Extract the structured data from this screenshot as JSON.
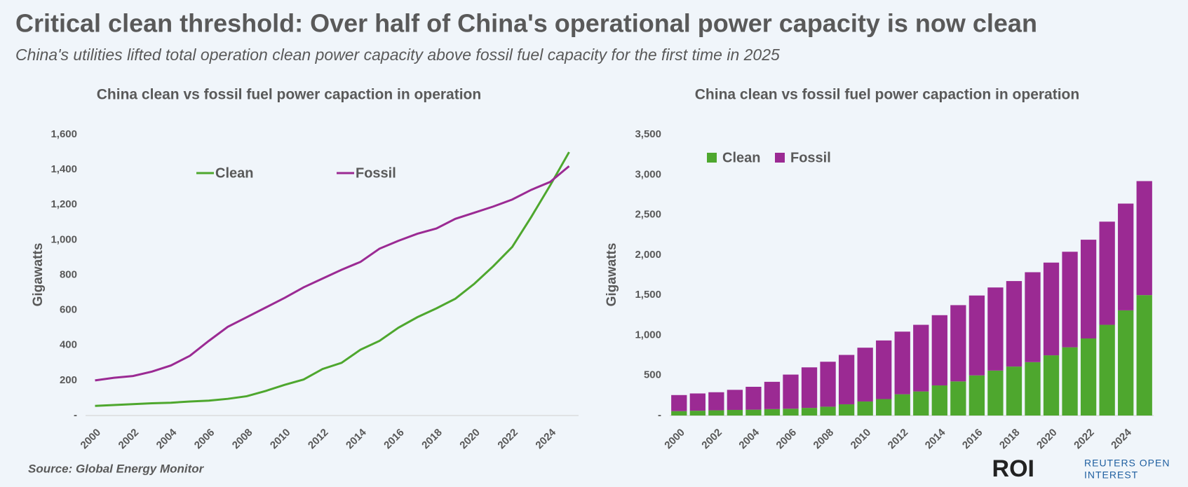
{
  "title": "Critical clean threshold: Over half of China's operational power capacity is now clean",
  "subtitle": "China's utilities lifted total operation clean power capacity above fossil fuel capacity for the first time in 2025",
  "source": "Source:  Global Energy Monitor",
  "logo": {
    "mark": "ROI",
    "line1": "REUTERS OPEN",
    "line2": "INTEREST"
  },
  "chart_data": [
    {
      "type": "line",
      "title": "China clean vs fossil fuel power capaction in operation",
      "y_label": "Gigawatts",
      "categories": [
        "2000",
        null,
        "2002",
        null,
        "2004",
        null,
        "2006",
        null,
        "2008",
        null,
        "2010",
        null,
        "2012",
        null,
        "2014",
        null,
        "2016",
        null,
        "2018",
        null,
        "2020",
        null,
        "2022",
        null,
        "2024",
        null
      ],
      "series": [
        {
          "name": "Clean",
          "color": "#4ea72e",
          "values": [
            55,
            60,
            65,
            70,
            73,
            80,
            85,
            95,
            110,
            140,
            175,
            205,
            265,
            300,
            375,
            425,
            500,
            560,
            610,
            665,
            750,
            850,
            960,
            1130,
            1310,
            1500
          ]
        },
        {
          "name": "Fossil",
          "color": "#9b2a93",
          "values": [
            200,
            215,
            225,
            250,
            285,
            340,
            425,
            505,
            560,
            615,
            670,
            730,
            780,
            830,
            875,
            950,
            995,
            1035,
            1065,
            1120,
            1155,
            1190,
            1230,
            1285,
            1330,
            1420
          ]
        }
      ],
      "ylim": [
        0,
        1600
      ],
      "yticks": [
        {
          "value": 0,
          "label": "-"
        },
        200,
        400,
        600,
        800,
        {
          "value": 1000,
          "label": "1,000"
        },
        {
          "value": 1200,
          "label": "1,200"
        },
        {
          "value": 1400,
          "label": "1,400"
        },
        {
          "value": 1600,
          "label": "1,600"
        }
      ],
      "legend": "top"
    },
    {
      "type": "stacked_bar",
      "title": "China clean vs fossil fuel power capaction in operation",
      "y_label": "Gigawatts",
      "categories": [
        "2000",
        null,
        "2002",
        null,
        "2004",
        null,
        "2006",
        null,
        "2008",
        null,
        "2010",
        null,
        "2012",
        null,
        "2014",
        null,
        "2016",
        null,
        "2018",
        null,
        "2020",
        null,
        "2022",
        null,
        "2024",
        null
      ],
      "series": [
        {
          "name": "Clean",
          "color": "#4ea72e",
          "values": [
            55,
            60,
            65,
            70,
            73,
            80,
            85,
            95,
            110,
            140,
            175,
            205,
            265,
            300,
            375,
            425,
            500,
            560,
            610,
            665,
            750,
            850,
            960,
            1130,
            1310,
            1500
          ]
        },
        {
          "name": "Fossil",
          "color": "#9b2a93",
          "values": [
            200,
            215,
            225,
            250,
            285,
            340,
            425,
            505,
            560,
            615,
            670,
            730,
            780,
            830,
            875,
            950,
            995,
            1035,
            1065,
            1120,
            1155,
            1190,
            1230,
            1285,
            1330,
            1420
          ]
        }
      ],
      "ylim": [
        0,
        3500
      ],
      "yticks": [
        {
          "value": 0,
          "label": "-"
        },
        500,
        {
          "value": 1000,
          "label": "1,000"
        },
        {
          "value": 1500,
          "label": "1,500"
        },
        {
          "value": 2000,
          "label": "2,000"
        },
        {
          "value": 2500,
          "label": "2,500"
        },
        {
          "value": 3000,
          "label": "3,000"
        },
        {
          "value": 3500,
          "label": "3,500"
        }
      ],
      "legend": "top-left"
    }
  ]
}
